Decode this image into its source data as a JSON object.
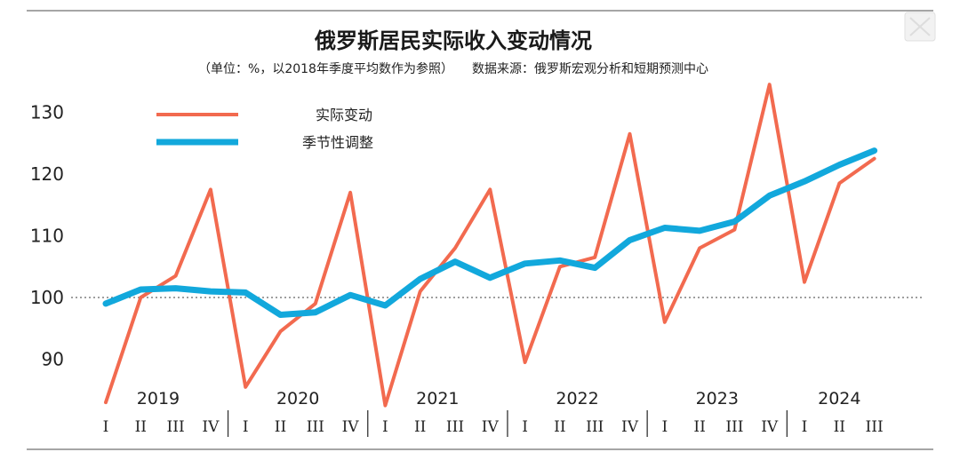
{
  "chart_data": {
    "type": "line",
    "title": "俄罗斯居民实际收入变动情况",
    "subtitle": "（单位：%，以2018年季度平均数作为参照）　　数据来源：俄罗斯宏观分析和短期预测中心",
    "ylim": [
      85,
      136
    ],
    "yticks": [
      90,
      100,
      110,
      120,
      130
    ],
    "reference_line": 100,
    "years": [
      "2019",
      "2020",
      "2021",
      "2022",
      "2023",
      "2024"
    ],
    "quarter_labels": [
      "I",
      "II",
      "III",
      "IV",
      "I",
      "II",
      "III",
      "IV",
      "I",
      "II",
      "III",
      "IV",
      "I",
      "II",
      "III",
      "IV",
      "I",
      "II",
      "III",
      "IV",
      "I",
      "II",
      "III"
    ],
    "series": [
      {
        "name": "实际变动",
        "color": "#f26a4f",
        "values": [
          83,
          100,
          103.5,
          117.5,
          85.5,
          94.5,
          99,
          117,
          82.5,
          101,
          108,
          117.5,
          89.5,
          105,
          106.5,
          126.5,
          96,
          108,
          111,
          134.5,
          102.5,
          118.5,
          122.5
        ]
      },
      {
        "name": "季节性调整",
        "color": "#12a8dc",
        "values": [
          99,
          101.3,
          101.5,
          101,
          100.8,
          97.2,
          97.6,
          100.4,
          98.7,
          103,
          105.8,
          103.2,
          105.5,
          106,
          104.8,
          109.3,
          111.3,
          110.8,
          112.3,
          116.5,
          118.8,
          121.5,
          123.8
        ]
      }
    ]
  }
}
